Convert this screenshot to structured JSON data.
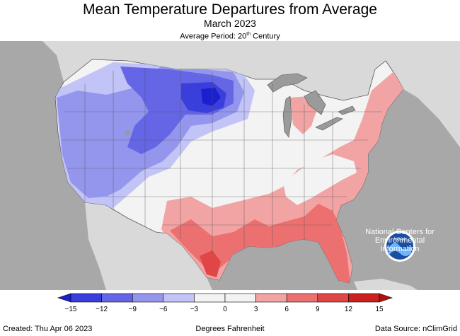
{
  "header": {
    "title": "Mean Temperature Departures from Average",
    "subtitle": "March 2023",
    "period_prefix": "Average Period: 20",
    "period_sup": "th",
    "period_suffix": " Century"
  },
  "logo": {
    "label": "NOAA",
    "org_line1": "National Centers for",
    "org_line2": "Environmental",
    "org_line3": "Information"
  },
  "legend": {
    "ticks": [
      "−15",
      "−12",
      "−9",
      "−6",
      "−3",
      "0",
      "3",
      "6",
      "9",
      "12",
      "15"
    ],
    "colors": [
      "#1a1fd0",
      "#3a3fdc",
      "#6466e6",
      "#9496ee",
      "#c2c3f6",
      "#f3f3f3",
      "#f3f3f3",
      "#f2a3a3",
      "#ec7070",
      "#e04646",
      "#cc2020",
      "#b01010"
    ],
    "units": "Degrees Fahrenheit"
  },
  "footer": {
    "created": "Created: Thu Apr 06 2023",
    "source": "Data Source: nClimGrid"
  },
  "colors": {
    "ocean": "#a8a8a8",
    "neighbor_land": "#d9d9d9",
    "lakes": "#9a9a9a",
    "neutral": "#f3f3f3",
    "cool_1": "#c2c3f6",
    "cool_2": "#9496ee",
    "cool_3": "#6466e6",
    "cool_4": "#3a3fdc",
    "warm_1": "#f2a3a3",
    "warm_2": "#ec7070",
    "warm_3": "#e04646"
  }
}
